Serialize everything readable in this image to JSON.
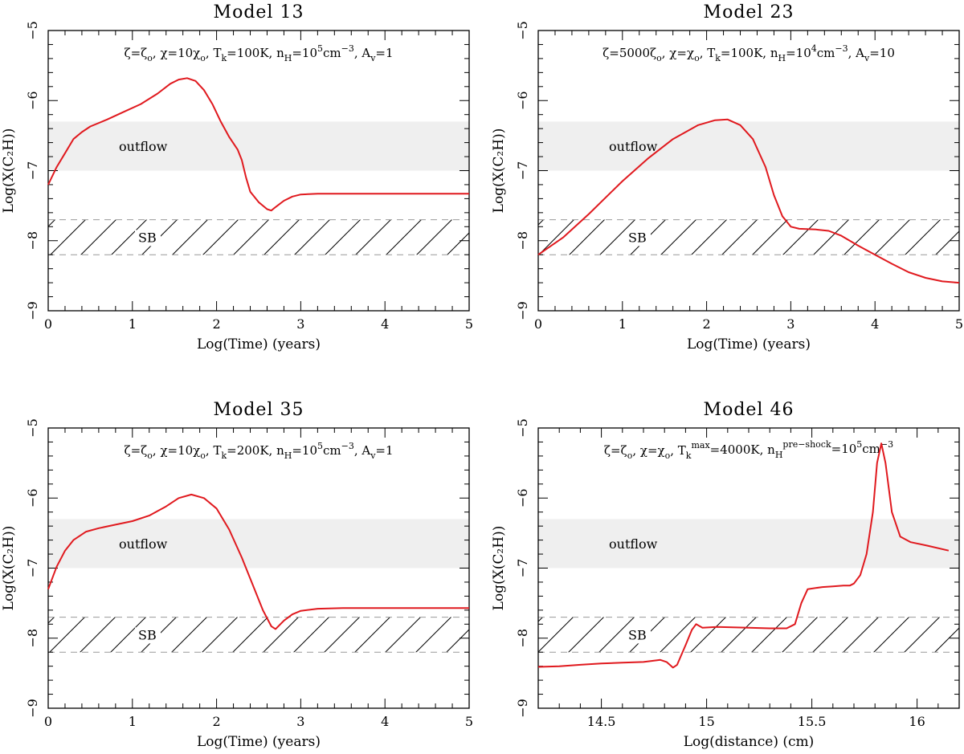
{
  "figure": {
    "panels": [
      {
        "title": "Model 13",
        "params": [
          "ζ=ζ",
          "o",
          ", χ=10χ",
          "o",
          ", T",
          "k",
          "=100K, n",
          "H",
          "=10",
          "5",
          "cm",
          "−3",
          ", A",
          "v",
          "=1"
        ],
        "outflow_label": "outflow",
        "sb_label": "SB"
      },
      {
        "title": "Model 23",
        "params": [
          "ζ=5000ζ",
          "o",
          ", χ=χ",
          "o",
          ", T",
          "k",
          "=100K, n",
          "H",
          "=10",
          "4",
          "cm",
          "−3",
          ", A",
          "v",
          "=10"
        ],
        "outflow_label": "outflow",
        "sb_label": "SB"
      },
      {
        "title": "Model 35",
        "params": [
          "ζ=ζ",
          "o",
          ", χ=10χ",
          "o",
          ", T",
          "k",
          "=200K, n",
          "H",
          "=10",
          "5",
          "cm",
          "−3",
          ", A",
          "v",
          "=1"
        ],
        "outflow_label": "outflow",
        "sb_label": "SB"
      },
      {
        "title": "Model 46",
        "params": [
          "ζ=ζ",
          "o",
          ", χ=χ",
          "o",
          ", T",
          "k",
          "max",
          "=4000K, n",
          "H",
          "pre−shock",
          "=10",
          "5",
          "cm",
          "−3"
        ],
        "outflow_label": "outflow",
        "sb_label": "SB"
      }
    ]
  },
  "chart_data": [
    {
      "type": "line",
      "title": "Model 13",
      "xlabel": "Log(Time) (years)",
      "ylabel": "Log(X(C₂H))",
      "xlim": [
        0,
        5
      ],
      "ylim": [
        -9,
        -5
      ],
      "xticks": [
        0,
        1,
        2,
        3,
        4,
        5
      ],
      "yticks": [
        -9,
        -8,
        -7,
        -6,
        -5
      ],
      "bands": {
        "outflow": [
          -7.0,
          -6.3
        ],
        "sb": [
          -8.2,
          -7.7
        ]
      },
      "series": [
        {
          "color": "#e0191e",
          "points": [
            [
              0,
              -7.2
            ],
            [
              0.1,
              -6.95
            ],
            [
              0.2,
              -6.75
            ],
            [
              0.3,
              -6.55
            ],
            [
              0.4,
              -6.45
            ],
            [
              0.5,
              -6.37
            ],
            [
              0.7,
              -6.27
            ],
            [
              0.9,
              -6.16
            ],
            [
              1.1,
              -6.05
            ],
            [
              1.3,
              -5.9
            ],
            [
              1.45,
              -5.76
            ],
            [
              1.55,
              -5.7
            ],
            [
              1.65,
              -5.68
            ],
            [
              1.75,
              -5.72
            ],
            [
              1.85,
              -5.85
            ],
            [
              1.95,
              -6.05
            ],
            [
              2.05,
              -6.3
            ],
            [
              2.15,
              -6.52
            ],
            [
              2.25,
              -6.7
            ],
            [
              2.3,
              -6.85
            ],
            [
              2.35,
              -7.1
            ],
            [
              2.4,
              -7.3
            ],
            [
              2.5,
              -7.45
            ],
            [
              2.6,
              -7.55
            ],
            [
              2.65,
              -7.57
            ],
            [
              2.7,
              -7.52
            ],
            [
              2.8,
              -7.43
            ],
            [
              2.9,
              -7.37
            ],
            [
              3.0,
              -7.34
            ],
            [
              3.2,
              -7.33
            ],
            [
              3.5,
              -7.33
            ],
            [
              4.0,
              -7.33
            ],
            [
              4.5,
              -7.33
            ],
            [
              5.0,
              -7.33
            ]
          ]
        }
      ]
    },
    {
      "type": "line",
      "title": "Model 23",
      "xlabel": "Log(Time) (years)",
      "ylabel": "Log(X(C₂H))",
      "xlim": [
        0,
        5
      ],
      "ylim": [
        -9,
        -5
      ],
      "xticks": [
        0,
        1,
        2,
        3,
        4,
        5
      ],
      "yticks": [
        -9,
        -8,
        -7,
        -6,
        -5
      ],
      "bands": {
        "outflow": [
          -7.0,
          -6.3
        ],
        "sb": [
          -8.2,
          -7.7
        ]
      },
      "series": [
        {
          "color": "#e0191e",
          "points": [
            [
              0,
              -8.2
            ],
            [
              0.3,
              -7.95
            ],
            [
              0.6,
              -7.62
            ],
            [
              1.0,
              -7.15
            ],
            [
              1.3,
              -6.83
            ],
            [
              1.6,
              -6.55
            ],
            [
              1.9,
              -6.35
            ],
            [
              2.1,
              -6.28
            ],
            [
              2.25,
              -6.27
            ],
            [
              2.4,
              -6.35
            ],
            [
              2.55,
              -6.55
            ],
            [
              2.7,
              -6.95
            ],
            [
              2.8,
              -7.35
            ],
            [
              2.9,
              -7.65
            ],
            [
              3.0,
              -7.8
            ],
            [
              3.1,
              -7.83
            ],
            [
              3.3,
              -7.84
            ],
            [
              3.45,
              -7.86
            ],
            [
              3.6,
              -7.93
            ],
            [
              3.8,
              -8.07
            ],
            [
              4.0,
              -8.2
            ],
            [
              4.2,
              -8.33
            ],
            [
              4.4,
              -8.45
            ],
            [
              4.6,
              -8.53
            ],
            [
              4.8,
              -8.58
            ],
            [
              5.0,
              -8.6
            ]
          ]
        }
      ]
    },
    {
      "type": "line",
      "title": "Model 35",
      "xlabel": "Log(Time) (years)",
      "ylabel": "Log(X(C₂H))",
      "xlim": [
        0,
        5
      ],
      "ylim": [
        -9,
        -5
      ],
      "xticks": [
        0,
        1,
        2,
        3,
        4,
        5
      ],
      "yticks": [
        -9,
        -8,
        -7,
        -6,
        -5
      ],
      "bands": {
        "outflow": [
          -7.0,
          -6.3
        ],
        "sb": [
          -8.2,
          -7.7
        ]
      },
      "series": [
        {
          "color": "#e0191e",
          "points": [
            [
              0,
              -7.3
            ],
            [
              0.1,
              -6.98
            ],
            [
              0.2,
              -6.75
            ],
            [
              0.3,
              -6.6
            ],
            [
              0.45,
              -6.48
            ],
            [
              0.6,
              -6.43
            ],
            [
              0.8,
              -6.38
            ],
            [
              1.0,
              -6.33
            ],
            [
              1.2,
              -6.25
            ],
            [
              1.4,
              -6.12
            ],
            [
              1.55,
              -6.0
            ],
            [
              1.7,
              -5.95
            ],
            [
              1.85,
              -6.0
            ],
            [
              2.0,
              -6.15
            ],
            [
              2.15,
              -6.45
            ],
            [
              2.3,
              -6.85
            ],
            [
              2.45,
              -7.3
            ],
            [
              2.55,
              -7.6
            ],
            [
              2.65,
              -7.83
            ],
            [
              2.7,
              -7.87
            ],
            [
              2.8,
              -7.75
            ],
            [
              2.9,
              -7.66
            ],
            [
              3.0,
              -7.61
            ],
            [
              3.2,
              -7.58
            ],
            [
              3.5,
              -7.57
            ],
            [
              4.0,
              -7.57
            ],
            [
              4.5,
              -7.57
            ],
            [
              5.0,
              -7.57
            ]
          ]
        }
      ]
    },
    {
      "type": "line",
      "title": "Model 46",
      "xlabel": "Log(distance) (cm)",
      "ylabel": "Log(X(C₂H))",
      "xlim": [
        14.2,
        16.2
      ],
      "ylim": [
        -9,
        -5
      ],
      "xticks": [
        14.5,
        15,
        15.5,
        16
      ],
      "yticks": [
        -9,
        -8,
        -7,
        -6,
        -5
      ],
      "bands": {
        "outflow": [
          -7.0,
          -6.3
        ],
        "sb": [
          -8.2,
          -7.7
        ]
      },
      "series": [
        {
          "color": "#e0191e",
          "points": [
            [
              14.2,
              -8.41
            ],
            [
              14.3,
              -8.4
            ],
            [
              14.4,
              -8.38
            ],
            [
              14.5,
              -8.36
            ],
            [
              14.6,
              -8.35
            ],
            [
              14.7,
              -8.34
            ],
            [
              14.75,
              -8.32
            ],
            [
              14.78,
              -8.31
            ],
            [
              14.81,
              -8.34
            ],
            [
              14.84,
              -8.42
            ],
            [
              14.86,
              -8.38
            ],
            [
              14.9,
              -8.1
            ],
            [
              14.93,
              -7.88
            ],
            [
              14.95,
              -7.8
            ],
            [
              14.98,
              -7.85
            ],
            [
              15.05,
              -7.84
            ],
            [
              15.2,
              -7.85
            ],
            [
              15.3,
              -7.86
            ],
            [
              15.38,
              -7.86
            ],
            [
              15.42,
              -7.8
            ],
            [
              15.45,
              -7.5
            ],
            [
              15.48,
              -7.3
            ],
            [
              15.55,
              -7.27
            ],
            [
              15.6,
              -7.26
            ],
            [
              15.65,
              -7.25
            ],
            [
              15.68,
              -7.25
            ],
            [
              15.7,
              -7.22
            ],
            [
              15.73,
              -7.1
            ],
            [
              15.76,
              -6.8
            ],
            [
              15.79,
              -6.2
            ],
            [
              15.81,
              -5.5
            ],
            [
              15.83,
              -5.22
            ],
            [
              15.85,
              -5.5
            ],
            [
              15.88,
              -6.2
            ],
            [
              15.92,
              -6.55
            ],
            [
              15.97,
              -6.63
            ],
            [
              16.05,
              -6.68
            ],
            [
              16.15,
              -6.75
            ]
          ]
        }
      ]
    }
  ]
}
